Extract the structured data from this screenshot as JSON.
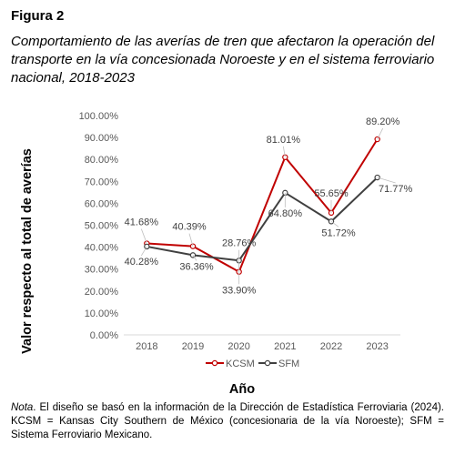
{
  "figure": {
    "label": "Figura 2",
    "title": "Comportamiento de las averías de tren que afectaron la operación del transporte en la vía concesionada Noroeste y en el sistema ferroviario nacional, 2018-2023"
  },
  "note": {
    "prefix": "Nota",
    "text": ". El diseño se basó en la información de la Dirección de Estadística Ferroviaria (2024). KCSM = Kansas City Southern de México (concesionaria de la vía Noroeste); SFM = Sistema Ferroviario Mexicano."
  },
  "chart_data": {
    "type": "line",
    "title": "",
    "xlabel": "Año",
    "ylabel": "Valor respecto al total de averías",
    "x": [
      "2018",
      "2019",
      "2020",
      "2021",
      "2022",
      "2023"
    ],
    "ylim": [
      0,
      100
    ],
    "yticks": [
      "0.00%",
      "10.00%",
      "20.00%",
      "30.00%",
      "40.00%",
      "50.00%",
      "60.00%",
      "70.00%",
      "80.00%",
      "90.00%",
      "100.00%"
    ],
    "grid": false,
    "legend": "bottom",
    "series": [
      {
        "name": "KCSM",
        "color": "#c00000",
        "values": [
          41.68,
          40.39,
          28.76,
          81.01,
          55.65,
          89.2
        ],
        "labels": [
          "41.68%",
          "40.39%",
          "28.76%",
          "81.01%",
          "55.65%",
          "89.20%"
        ]
      },
      {
        "name": "SFM",
        "color": "#404040",
        "values": [
          40.28,
          36.36,
          33.9,
          64.8,
          51.72,
          71.77
        ],
        "labels": [
          "40.28%",
          "36.36%",
          "33.90%",
          "64.80%",
          "51.72%",
          "71.77%"
        ]
      }
    ]
  }
}
